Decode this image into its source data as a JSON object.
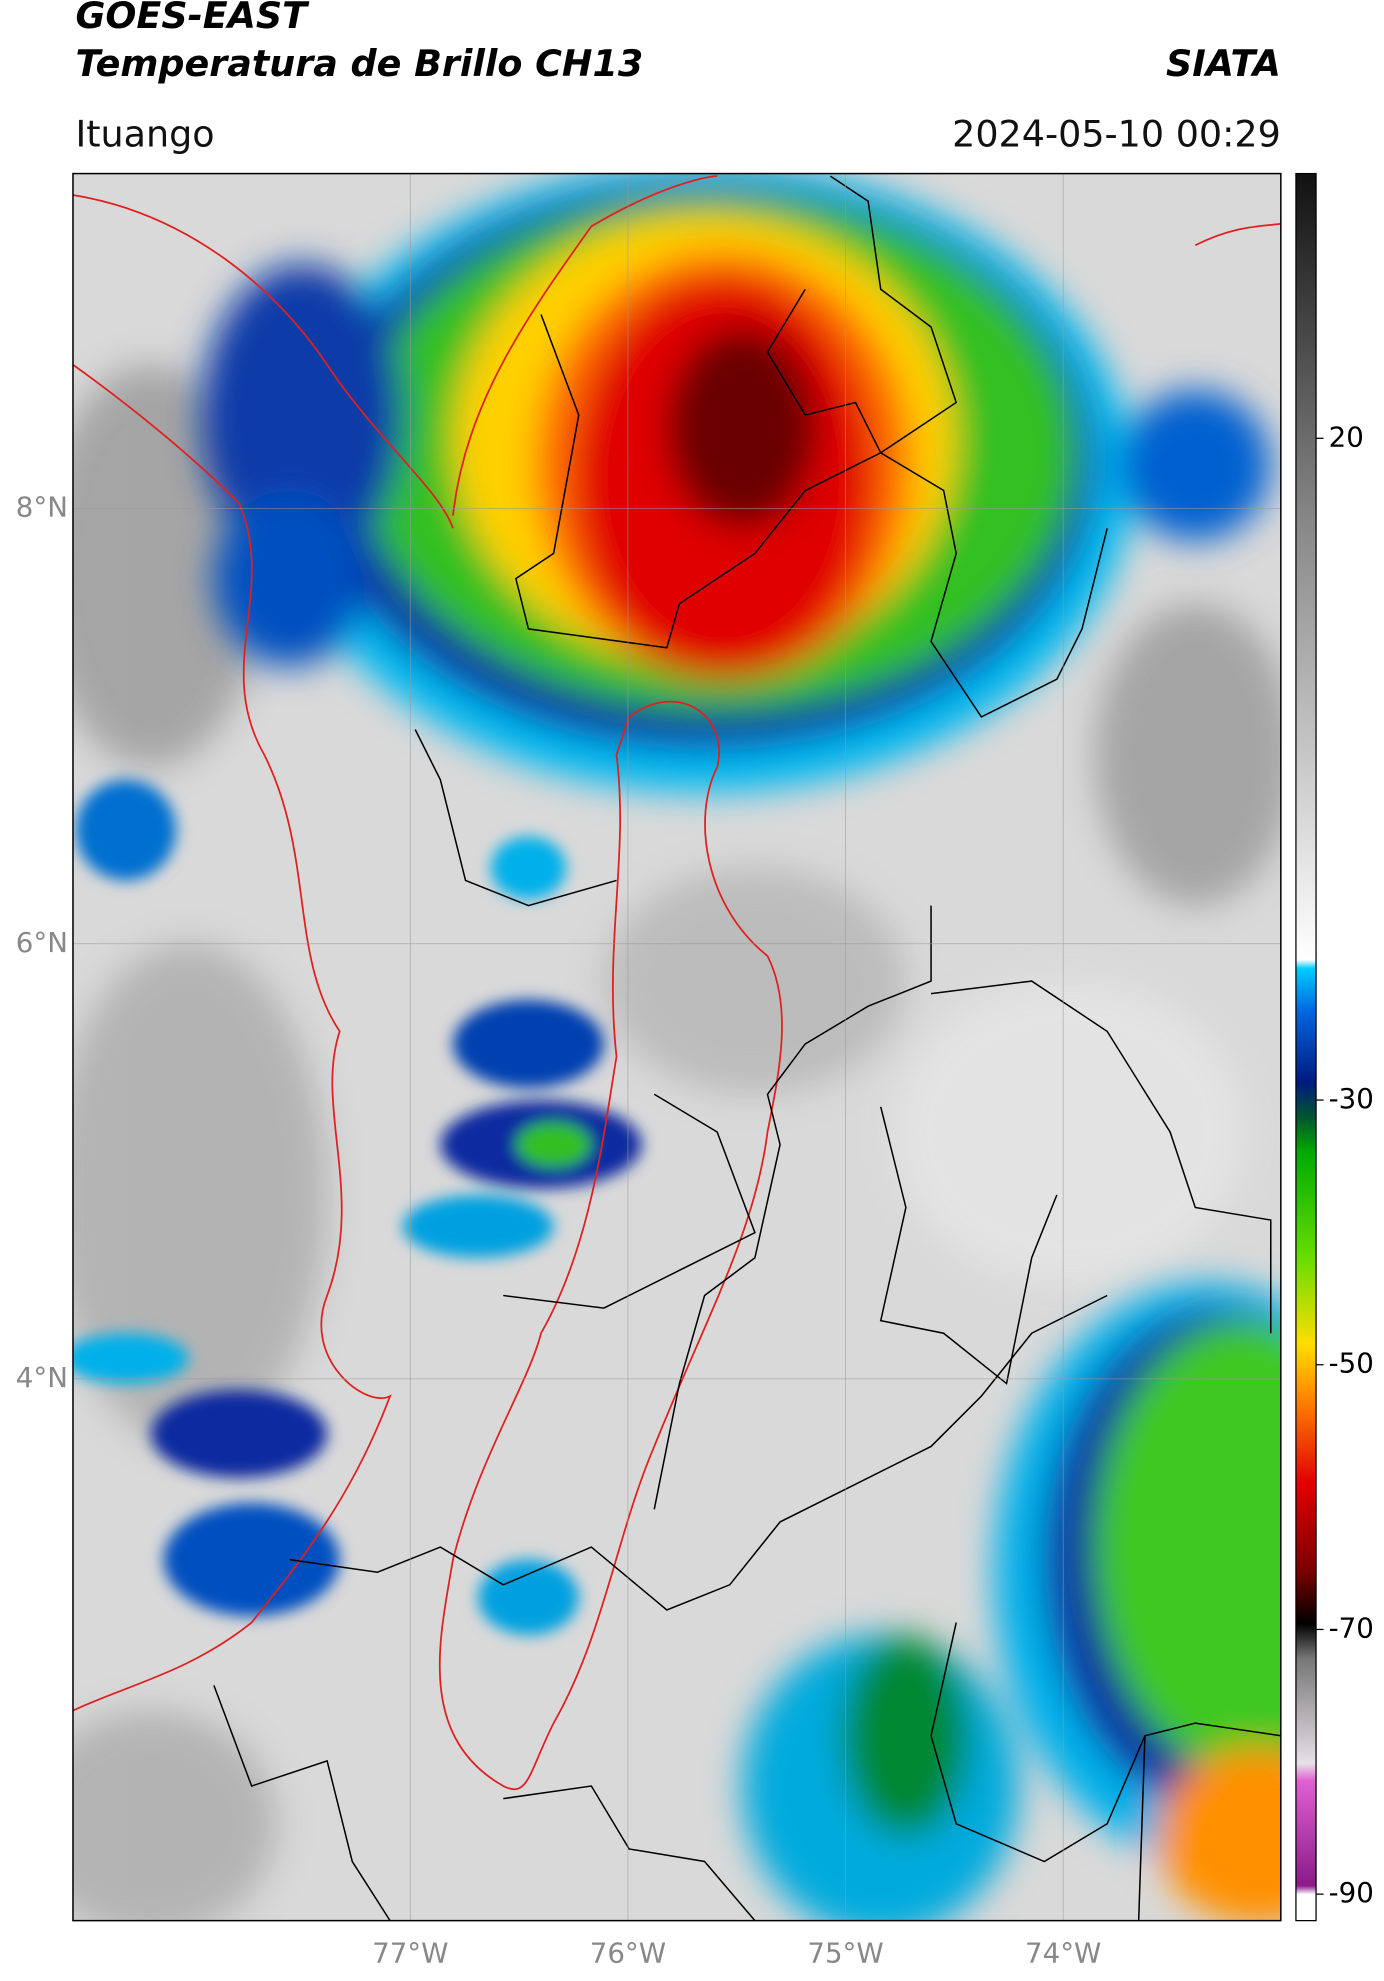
{
  "header": {
    "title": "GOES-EAST",
    "subtitle": "Temperatura de Brillo CH13",
    "source": "SIATA",
    "location": "Ituango",
    "datetime": "2024-05-10 00:29"
  },
  "map": {
    "latlim": [
      1.51,
      9.54
    ],
    "lonlim": [
      -78.55,
      -73.0
    ],
    "grid": true,
    "latticks": [
      {
        "value": 8,
        "label": "8°N"
      },
      {
        "value": 6,
        "label": "6°N"
      },
      {
        "value": 4,
        "label": "4°N"
      }
    ],
    "lonticks": [
      {
        "value": -77,
        "label": "77°W"
      },
      {
        "value": -76,
        "label": "76°W"
      },
      {
        "value": -75,
        "label": "75°W"
      },
      {
        "value": -74,
        "label": "74°W"
      }
    ]
  },
  "colorbar": {
    "lim": [
      -92,
      40
    ],
    "ticks": [
      20,
      -30,
      -50,
      -70,
      -90
    ]
  }
}
